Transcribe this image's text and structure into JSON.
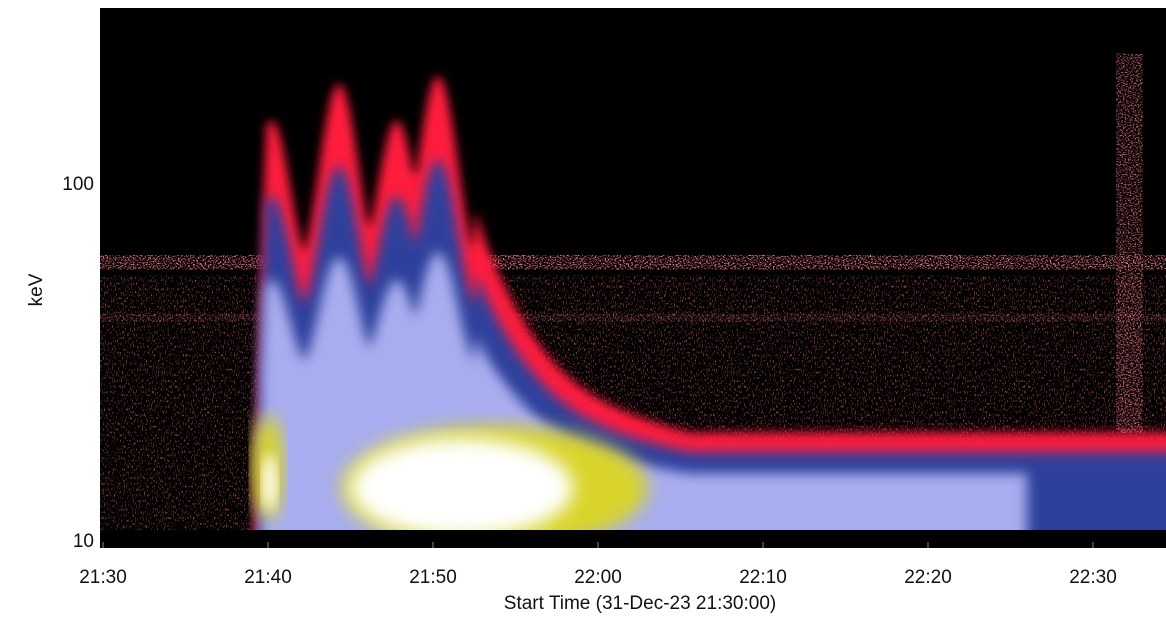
{
  "chart_data": {
    "type": "heatmap",
    "title": "",
    "xlabel": "Start Time (31-Dec-23 21:30:00)",
    "ylabel": "keV",
    "x_tick_labels": [
      "21:30",
      "21:40",
      "21:50",
      "22:00",
      "22:10",
      "22:20",
      "22:30"
    ],
    "x_ticks_min": [
      0,
      10,
      20,
      30,
      40,
      50,
      60
    ],
    "xlim_min": [
      0,
      64
    ],
    "y_scale": "log",
    "y_tick_labels": [
      "10",
      "100"
    ],
    "y_ticks": [
      10,
      100
    ],
    "ylim": [
      10,
      300
    ],
    "colormap": [
      "#000000",
      "#ff1a3c",
      "#2a3f9e",
      "#a9aef0",
      "#d6d22a",
      "#ffffff"
    ],
    "background_line_keV": [
      60,
      42
    ],
    "peaks": [
      {
        "t_min": 10.2,
        "peak_keV": 150
      },
      {
        "t_min": 14.3,
        "peak_keV": 190
      },
      {
        "t_min": 17.8,
        "peak_keV": 150
      },
      {
        "t_min": 20.3,
        "peak_keV": 200
      },
      {
        "t_min": 62.2,
        "peak_keV": 230
      }
    ],
    "core": {
      "t_center_min": 22.0,
      "keV_center": 14,
      "yellow_extent_min": [
        14.5,
        33.0
      ],
      "white_extent_min": [
        15.0,
        28.5
      ]
    },
    "legend": "none",
    "grid": false
  }
}
